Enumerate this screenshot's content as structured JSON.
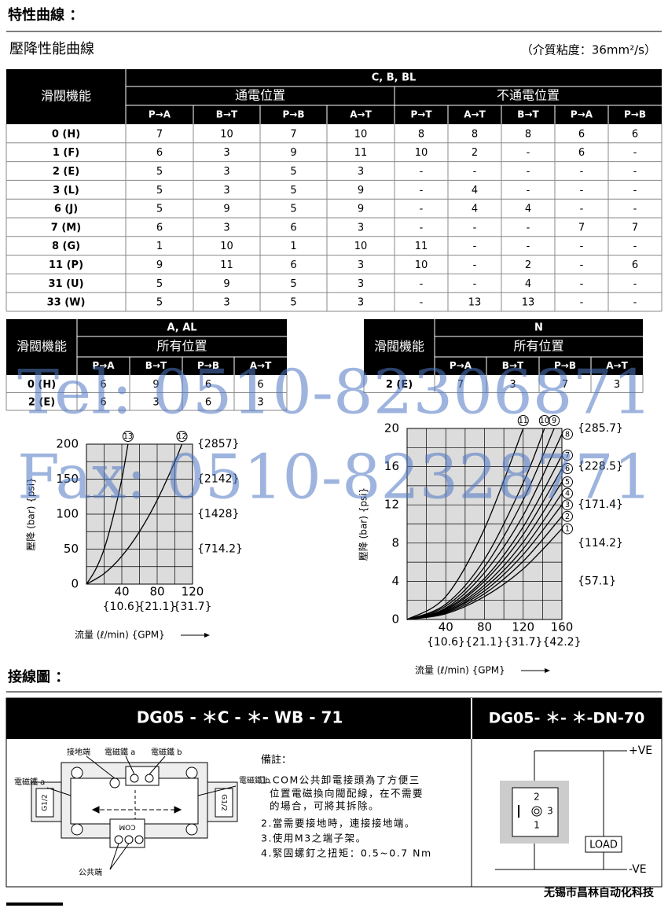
{
  "header": {
    "title": "特性曲線 ："
  },
  "section": {
    "title": "壓降性能曲線",
    "note": "（介質粘度：36mm²/s）"
  },
  "table1": {
    "stub": "滑閥機能",
    "group": "C, B, BL",
    "subgroups": [
      "通電位置",
      "不通電位置"
    ],
    "columns": [
      "P→A",
      "B→T",
      "P→B",
      "A→T",
      "P→T",
      "A→T",
      "B→T",
      "P→A",
      "P→B"
    ],
    "rows": [
      [
        "0 (H)",
        7,
        10,
        7,
        10,
        8,
        8,
        8,
        6,
        6
      ],
      [
        "1 (F)",
        6,
        3,
        9,
        11,
        10,
        2,
        "-",
        6,
        "-"
      ],
      [
        "2 (E)",
        5,
        3,
        5,
        3,
        "-",
        "-",
        "-",
        "-",
        "-"
      ],
      [
        "3 (L)",
        5,
        3,
        5,
        9,
        "-",
        4,
        "-",
        "-",
        "-"
      ],
      [
        "6 (J)",
        5,
        9,
        5,
        9,
        "-",
        4,
        4,
        "-",
        "-"
      ],
      [
        "7 (M)",
        6,
        3,
        6,
        3,
        "-",
        "-",
        "-",
        7,
        7
      ],
      [
        "8 (G)",
        1,
        10,
        1,
        10,
        11,
        "-",
        "-",
        "-",
        "-"
      ],
      [
        "11 (P)",
        9,
        11,
        6,
        3,
        10,
        "-",
        2,
        "-",
        6
      ],
      [
        "31 (U)",
        5,
        9,
        5,
        3,
        "-",
        "-",
        4,
        "-",
        "-"
      ],
      [
        "33 (W)",
        5,
        3,
        5,
        3,
        "-",
        13,
        13,
        "-",
        "-"
      ]
    ]
  },
  "table2": {
    "stub": "滑閥機能",
    "group": "A, AL",
    "subgroups": [
      "所有位置"
    ],
    "columns": [
      "P→A",
      "B→T",
      "P→B",
      "A→T"
    ],
    "rows": [
      [
        "0 (H)",
        6,
        9,
        6,
        6
      ],
      [
        "2 (E)",
        6,
        3,
        6,
        3
      ]
    ]
  },
  "table3": {
    "stub": "滑閥機能",
    "group": "N",
    "subgroups": [
      "所有位置"
    ],
    "columns": [
      "P→A",
      "B→T",
      "P→B",
      "A→T"
    ],
    "rows": [
      [
        "2 (E)",
        7,
        3,
        7,
        3
      ]
    ]
  },
  "watermark": [
    "Tel: 0510-82306871",
    "Fax: 0510-82328771"
  ],
  "chart_data": [
    {
      "type": "line",
      "ylabel": "壓降 (bar) {psi}",
      "xlabel": "流量 (ℓ/min) {GPM}",
      "grid": true,
      "xlim": [
        0,
        120
      ],
      "ylim": [
        0,
        200
      ],
      "xticks": [
        40,
        80,
        120
      ],
      "yticks": [
        0,
        50,
        100,
        150,
        200
      ],
      "xgrid": [
        0,
        20,
        40,
        60,
        80,
        100,
        120
      ],
      "ygrid": [
        0,
        25,
        50,
        75,
        100,
        125,
        150,
        175,
        200
      ],
      "x2lim": [
        0,
        31.7
      ],
      "x2ticks": [
        {
          "value": 10.6,
          "label": "{10.6}"
        },
        {
          "value": 21.1,
          "label": "{21.1}"
        },
        {
          "value": 31.7,
          "label": "{31.7}"
        }
      ],
      "y2lim": [
        0,
        2857
      ],
      "y2ticks": [
        {
          "value": 714.2,
          "label": "{714.2}"
        },
        {
          "value": 1428,
          "label": "{1428}"
        },
        {
          "value": 2142,
          "label": "{2142}"
        },
        {
          "value": 2857,
          "label": "{2857}"
        }
      ],
      "series": [
        {
          "name": "13",
          "color": "#000000",
          "x": [
            0,
            10,
            20,
            30,
            40,
            47
          ],
          "values": [
            0,
            20,
            50,
            95,
            150,
            200
          ]
        },
        {
          "name": "12",
          "color": "#000000",
          "x": [
            0,
            20,
            40,
            60,
            80,
            100,
            108
          ],
          "values": [
            0,
            15,
            40,
            75,
            120,
            175,
            200
          ]
        }
      ]
    },
    {
      "type": "line",
      "ylabel": "壓降 (bar) {psi}",
      "xlabel": "流量 (ℓ/min) {GPM}",
      "grid": true,
      "xlim": [
        0,
        160
      ],
      "ylim": [
        0,
        20
      ],
      "xticks": [
        40,
        80,
        120,
        160
      ],
      "yticks": [
        0,
        4,
        8,
        12,
        16,
        20
      ],
      "xgrid": [
        0,
        20,
        40,
        60,
        80,
        100,
        120,
        140,
        160
      ],
      "ygrid": [
        0,
        2,
        4,
        6,
        8,
        10,
        12,
        14,
        16,
        18,
        20
      ],
      "x2lim": [
        0,
        42.2
      ],
      "x2ticks": [
        {
          "value": 10.6,
          "label": "{10.6}"
        },
        {
          "value": 21.1,
          "label": "{21.1}"
        },
        {
          "value": 31.7,
          "label": "{31.7}"
        },
        {
          "value": 42.2,
          "label": "{42.2}"
        }
      ],
      "y2lim": [
        0,
        285.7
      ],
      "y2ticks": [
        {
          "value": 57.1,
          "label": "{57.1}"
        },
        {
          "value": 114.2,
          "label": "{114.2}"
        },
        {
          "value": 171.4,
          "label": "{171.4}"
        },
        {
          "value": 228.5,
          "label": "{228.5}"
        },
        {
          "value": 285.7,
          "label": "{285.7}"
        }
      ],
      "series": [
        {
          "name": "1",
          "color": "#000000",
          "x": [
            0,
            40,
            80,
            120,
            160
          ],
          "values": [
            0,
            0.6,
            2.4,
            5.3,
            9.5
          ]
        },
        {
          "name": "2",
          "color": "#000000",
          "x": [
            0,
            40,
            80,
            120,
            160
          ],
          "values": [
            0,
            0.7,
            2.7,
            6.1,
            10.8
          ]
        },
        {
          "name": "3",
          "color": "#000000",
          "x": [
            0,
            40,
            80,
            120,
            160
          ],
          "values": [
            0,
            0.8,
            3,
            6.8,
            12
          ]
        },
        {
          "name": "4",
          "color": "#000000",
          "x": [
            0,
            40,
            80,
            120,
            160
          ],
          "values": [
            0,
            0.8,
            3.3,
            7.4,
            13.2
          ]
        },
        {
          "name": "5",
          "color": "#000000",
          "x": [
            0,
            40,
            80,
            120,
            160
          ],
          "values": [
            0,
            0.9,
            3.6,
            8.1,
            14.4
          ]
        },
        {
          "name": "6",
          "color": "#000000",
          "x": [
            0,
            40,
            80,
            120,
            160
          ],
          "values": [
            0,
            1,
            4,
            8.9,
            15.8
          ]
        },
        {
          "name": "7",
          "color": "#000000",
          "x": [
            0,
            40,
            80,
            120,
            160
          ],
          "values": [
            0,
            1.1,
            4.3,
            9.7,
            17.2
          ]
        },
        {
          "name": "8",
          "color": "#000000",
          "x": [
            0,
            40,
            80,
            120,
            160
          ],
          "values": [
            0,
            1.2,
            4.9,
            10.9,
            19.4
          ]
        },
        {
          "name": "9",
          "color": "#000000",
          "x": [
            0,
            40,
            80,
            120,
            152
          ],
          "values": [
            0,
            1.4,
            5.5,
            12.5,
            20
          ]
        },
        {
          "name": "10",
          "color": "#000000",
          "x": [
            0,
            40,
            80,
            120,
            142
          ],
          "values": [
            0,
            1.6,
            6.3,
            14.3,
            20
          ]
        },
        {
          "name": "11",
          "color": "#000000",
          "x": [
            0,
            40,
            80,
            120
          ],
          "values": [
            0,
            2.4,
            9.5,
            20
          ]
        }
      ]
    }
  ],
  "wiring": {
    "title": "接線圖 ：",
    "panel1": {
      "title": "DG05 - ＊C - ＊- WB - 71",
      "ground": "接地端",
      "solenoid_a": "電磁鐵 a",
      "solenoid_b": "電磁鐵 b",
      "port": "G1/2",
      "com": "COM",
      "common": "公共端"
    },
    "notes": {
      "title": "備註：",
      "lines": [
        "1.COM公共卸電接頭為了方便三",
        "位置電磁換向閥配線，在不需要",
        "的場合，可將其拆除。",
        "2.當需要接地時，連接接地端。",
        "3.使用M3之端子架。",
        "4.緊固螺釘之扭矩：0.5~0.7 Nm"
      ]
    },
    "panel2": {
      "title": "DG05- ＊- ＊-DN-70",
      "plus": "+VE",
      "minus": "-VE",
      "load": "LOAD",
      "pins": [
        "2",
        "3",
        "1"
      ]
    }
  },
  "footer": "无锡市昌林自动化科技"
}
